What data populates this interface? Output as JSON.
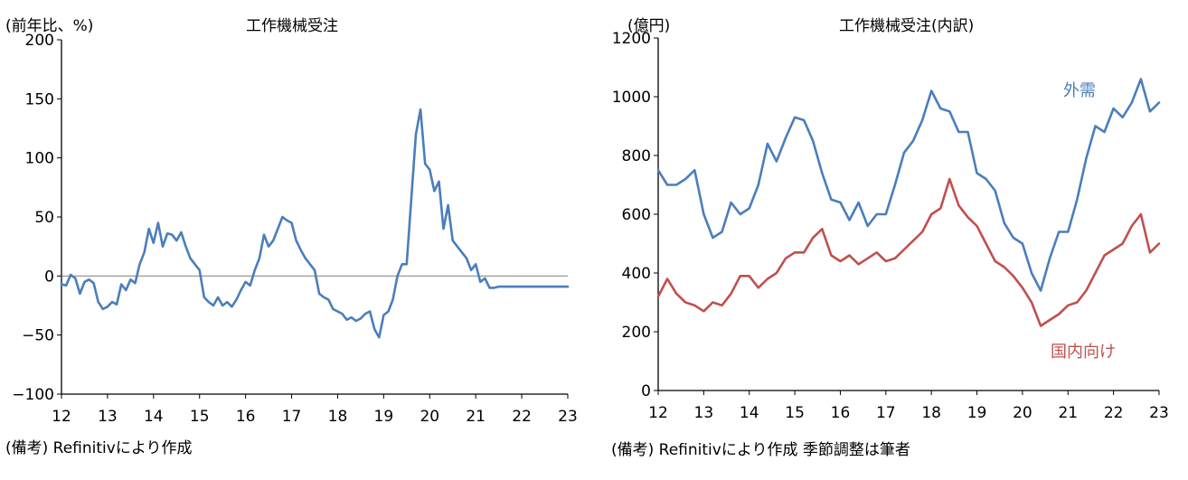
{
  "chart_data": [
    {
      "type": "line",
      "title": "工作機械受注",
      "ylabel": "(前年比、%)",
      "note": "(備考) Refinitivにより作成",
      "ylim": [
        -100,
        200
      ],
      "yticks": [
        200,
        150,
        100,
        50,
        0,
        -50,
        -100
      ],
      "ytick_labels": [
        "200",
        "150",
        "100",
        "50",
        "0",
        "−50",
        "−100"
      ],
      "xlim": [
        2012,
        2023
      ],
      "xticks": [
        2012,
        2013,
        2014,
        2015,
        2016,
        2017,
        2018,
        2019,
        2020,
        2021,
        2022,
        2023
      ],
      "xtick_labels": [
        "12",
        "13",
        "14",
        "15",
        "16",
        "17",
        "18",
        "19",
        "20",
        "21",
        "22",
        "23"
      ],
      "zero_line": true,
      "grid": false,
      "series": [
        {
          "name": "",
          "color": "#4a7ebb",
          "x": [
            2012.0,
            2012.1,
            2012.2,
            2012.3,
            2012.4,
            2012.5,
            2012.6,
            2012.7,
            2012.8,
            2012.9,
            2013.0,
            2013.1,
            2013.2,
            2013.3,
            2013.4,
            2013.5,
            2013.6,
            2013.7,
            2013.8,
            2013.9,
            2014.0,
            2014.1,
            2014.2,
            2014.3,
            2014.4,
            2014.5,
            2014.6,
            2014.7,
            2014.8,
            2014.9,
            2015.0,
            2015.1,
            2015.2,
            2015.3,
            2015.4,
            2015.5,
            2015.6,
            2015.7,
            2015.8,
            2015.9,
            2016.0,
            2016.1,
            2016.2,
            2016.3,
            2016.4,
            2016.5,
            2016.6,
            2016.7,
            2016.8,
            2016.9,
            2017.0,
            2017.1,
            2017.2,
            2017.3,
            2017.4,
            2017.5,
            2017.6,
            2017.7,
            2017.8,
            2017.9,
            2018.0,
            2018.1,
            2018.2,
            2018.3,
            2018.4,
            2018.5,
            2018.6,
            2018.7,
            2018.8,
            2018.9,
            2019.0,
            2019.1,
            2019.2,
            2019.3,
            2019.4,
            2019.5,
            2019.6,
            2019.7,
            2019.8,
            2019.9,
            2020.0,
            2020.1,
            2020.2,
            2020.3,
            2020.4,
            2020.5,
            2020.6,
            2020.7,
            2020.8,
            2020.9,
            2021.0,
            2021.1,
            2021.2,
            2021.3,
            2021.4,
            2021.5,
            2021.6,
            2021.7,
            2021.8,
            2021.9,
            2022.0,
            2022.1,
            2022.2,
            2022.3,
            2022.4,
            2022.5,
            2022.6,
            2022.7,
            2022.8,
            2022.9,
            2023.0
          ],
          "values": [
            -7,
            -8,
            1,
            -2,
            -15,
            -5,
            -3,
            -6,
            -22,
            -28,
            -26,
            -22,
            -24,
            -7,
            -12,
            -3,
            -6,
            10,
            20,
            40,
            28,
            45,
            25,
            36,
            35,
            30,
            37,
            25,
            15,
            10,
            5,
            -18,
            -22,
            -25,
            -18,
            -25,
            -22,
            -26,
            -20,
            -12,
            -5,
            -8,
            5,
            15,
            35,
            25,
            30,
            40,
            50,
            47,
            45,
            30,
            22,
            15,
            10,
            5,
            -15,
            -18,
            -20,
            -28,
            -30,
            -32,
            -37,
            -35,
            -38,
            -36,
            -32,
            -30,
            -45,
            -52,
            -33,
            -30,
            -20,
            0,
            10,
            10,
            65,
            120,
            141,
            95,
            90,
            72,
            80,
            40,
            60,
            30,
            25,
            20,
            15,
            5,
            10,
            -5,
            -2,
            -10,
            -10,
            -9,
            -9,
            -9,
            -9,
            -9,
            -9,
            -9,
            -9,
            -9,
            -9,
            -9,
            -9,
            -9,
            -9,
            -9,
            -9
          ]
        }
      ]
    },
    {
      "type": "line",
      "title": "工作機械受注(内訳)",
      "ylabel": "(億円)",
      "note": "(備考) Refinitivにより作成 季節調整は筆者",
      "ylim": [
        0,
        1200
      ],
      "yticks": [
        1200,
        1000,
        800,
        600,
        400,
        200,
        0
      ],
      "ytick_labels": [
        "1200",
        "1000",
        "800",
        "600",
        "400",
        "200",
        "0"
      ],
      "xlim": [
        2012,
        2023
      ],
      "xticks": [
        2012,
        2013,
        2014,
        2015,
        2016,
        2017,
        2018,
        2019,
        2020,
        2021,
        2022,
        2023
      ],
      "xtick_labels": [
        "12",
        "13",
        "14",
        "15",
        "16",
        "17",
        "18",
        "19",
        "20",
        "21",
        "22",
        "23"
      ],
      "grid": false,
      "series": [
        {
          "name": "外需",
          "color": "#4a7ebb",
          "x": [
            2012.0,
            2012.2,
            2012.4,
            2012.6,
            2012.8,
            2013.0,
            2013.2,
            2013.4,
            2013.6,
            2013.8,
            2014.0,
            2014.2,
            2014.4,
            2014.6,
            2014.8,
            2015.0,
            2015.2,
            2015.4,
            2015.6,
            2015.8,
            2016.0,
            2016.2,
            2016.4,
            2016.6,
            2016.8,
            2017.0,
            2017.2,
            2017.4,
            2017.6,
            2017.8,
            2018.0,
            2018.2,
            2018.4,
            2018.6,
            2018.8,
            2019.0,
            2019.2,
            2019.4,
            2019.6,
            2019.8,
            2020.0,
            2020.2,
            2020.4,
            2020.6,
            2020.8,
            2021.0,
            2021.2,
            2021.4,
            2021.6,
            2021.8,
            2022.0,
            2022.2,
            2022.4,
            2022.6,
            2022.8,
            2023.0
          ],
          "values": [
            750,
            700,
            700,
            720,
            750,
            600,
            520,
            540,
            640,
            600,
            620,
            700,
            840,
            780,
            860,
            930,
            920,
            850,
            740,
            650,
            640,
            580,
            640,
            560,
            600,
            600,
            700,
            810,
            850,
            920,
            1020,
            960,
            950,
            880,
            880,
            740,
            720,
            680,
            570,
            520,
            500,
            400,
            340,
            450,
            540,
            540,
            650,
            790,
            900,
            880,
            960,
            930,
            980,
            1060,
            950,
            980
          ]
        },
        {
          "name": "国内向け",
          "color": "#c0504d",
          "x": [
            2012.0,
            2012.2,
            2012.4,
            2012.6,
            2012.8,
            2013.0,
            2013.2,
            2013.4,
            2013.6,
            2013.8,
            2014.0,
            2014.2,
            2014.4,
            2014.6,
            2014.8,
            2015.0,
            2015.2,
            2015.4,
            2015.6,
            2015.8,
            2016.0,
            2016.2,
            2016.4,
            2016.6,
            2016.8,
            2017.0,
            2017.2,
            2017.4,
            2017.6,
            2017.8,
            2018.0,
            2018.2,
            2018.4,
            2018.6,
            2018.8,
            2019.0,
            2019.2,
            2019.4,
            2019.6,
            2019.8,
            2020.0,
            2020.2,
            2020.4,
            2020.6,
            2020.8,
            2021.0,
            2021.2,
            2021.4,
            2021.6,
            2021.8,
            2022.0,
            2022.2,
            2022.4,
            2022.6,
            2022.8,
            2023.0
          ],
          "values": [
            320,
            380,
            330,
            300,
            290,
            270,
            300,
            290,
            330,
            390,
            390,
            350,
            380,
            400,
            450,
            470,
            470,
            520,
            550,
            460,
            440,
            460,
            430,
            450,
            470,
            440,
            450,
            480,
            510,
            540,
            600,
            620,
            720,
            630,
            590,
            560,
            500,
            440,
            420,
            390,
            350,
            300,
            220,
            240,
            260,
            290,
            300,
            340,
            400,
            460,
            480,
            500,
            560,
            600,
            470,
            500
          ]
        }
      ]
    }
  ]
}
